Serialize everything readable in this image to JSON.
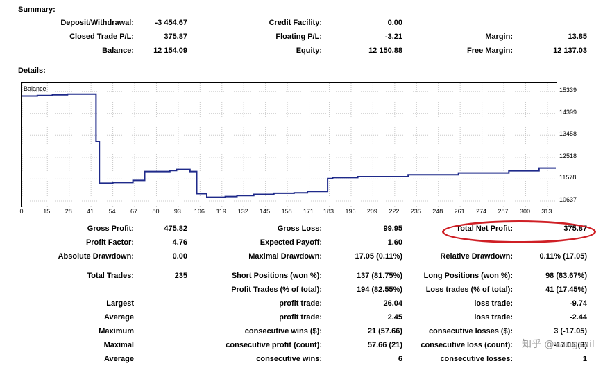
{
  "summary": {
    "title": "Summary:",
    "rows": [
      [
        {
          "label": "Deposit/Withdrawal:",
          "value": "-3 454.67"
        },
        {
          "label": "Credit Facility:",
          "value": "0.00"
        },
        {
          "label": "",
          "value": ""
        }
      ],
      [
        {
          "label": "Closed Trade P/L:",
          "value": "375.87"
        },
        {
          "label": "Floating P/L:",
          "value": "-3.21"
        },
        {
          "label": "Margin:",
          "value": "13.85"
        }
      ],
      [
        {
          "label": "Balance:",
          "value": "12 154.09"
        },
        {
          "label": "Equity:",
          "value": "12 150.88"
        },
        {
          "label": "Free Margin:",
          "value": "12 137.03"
        }
      ]
    ]
  },
  "details": {
    "title": "Details:",
    "rows": [
      [
        {
          "label": "Gross Profit:",
          "value": "475.82"
        },
        {
          "label": "Gross Loss:",
          "value": "99.95"
        },
        {
          "label": "Total Net Profit:",
          "value": "375.87"
        }
      ],
      [
        {
          "label": "Profit Factor:",
          "value": "4.76"
        },
        {
          "label": "Expected Payoff:",
          "value": "1.60"
        },
        {
          "label": "",
          "value": ""
        }
      ],
      [
        {
          "label": "Absolute Drawdown:",
          "value": "0.00"
        },
        {
          "label": "Maximal Drawdown:",
          "value": "17.05 (0.11%)"
        },
        {
          "label": "Relative Drawdown:",
          "value": "0.11% (17.05)"
        }
      ],
      [
        {
          "label": "Total Trades:",
          "value": "235"
        },
        {
          "label": "Short Positions (won %):",
          "value": "137 (81.75%)"
        },
        {
          "label": "Long Positions (won %):",
          "value": "98 (83.67%)"
        }
      ],
      [
        {
          "label": "",
          "value": ""
        },
        {
          "label": "Profit Trades (% of total):",
          "value": "194 (82.55%)"
        },
        {
          "label": "Loss trades (% of total):",
          "value": "41 (17.45%)"
        }
      ],
      [
        {
          "label": "Largest",
          "value": ""
        },
        {
          "label": "profit trade:",
          "value": "26.04"
        },
        {
          "label": "loss trade:",
          "value": "-9.74"
        }
      ],
      [
        {
          "label": "Average",
          "value": ""
        },
        {
          "label": "profit trade:",
          "value": "2.45"
        },
        {
          "label": "loss trade:",
          "value": "-2.44"
        }
      ],
      [
        {
          "label": "Maximum",
          "value": ""
        },
        {
          "label": "consecutive wins ($):",
          "value": "21 (57.66)"
        },
        {
          "label": "consecutive losses ($):",
          "value": "3 (-17.05)"
        }
      ],
      [
        {
          "label": "Maximal",
          "value": ""
        },
        {
          "label": "consecutive profit (count):",
          "value": "57.66 (21)"
        },
        {
          "label": "consecutive loss (count):",
          "value": "-17.05 (3)"
        }
      ],
      [
        {
          "label": "Average",
          "value": ""
        },
        {
          "label": "consecutive wins:",
          "value": "6"
        },
        {
          "label": "consecutive losses:",
          "value": "1"
        }
      ]
    ]
  },
  "chart_data": {
    "type": "line",
    "title": "Balance",
    "x_ticks": [
      0,
      15,
      28,
      41,
      54,
      67,
      80,
      93,
      106,
      119,
      132,
      145,
      158,
      171,
      183,
      196,
      209,
      222,
      235,
      248,
      261,
      274,
      287,
      300,
      313
    ],
    "y_ticks": [
      10637,
      11578,
      12518,
      13458,
      14399,
      15339
    ],
    "xlim": [
      0,
      318
    ],
    "ylim": [
      10400,
      15700
    ],
    "grid": true,
    "series": [
      {
        "color": "#1f2a8a",
        "x": [
          0,
          9,
          9,
          18,
          18,
          27,
          27,
          44,
          44,
          46,
          46,
          54,
          54,
          66,
          66,
          73,
          73,
          88,
          88,
          92,
          92,
          100,
          100,
          104,
          104,
          110,
          110,
          121,
          121,
          128,
          128,
          138,
          138,
          150,
          150,
          162,
          162,
          170,
          170,
          182,
          182,
          185,
          185,
          200,
          200,
          230,
          230,
          260,
          260,
          290,
          290,
          308,
          308,
          318
        ],
        "y": [
          15150,
          15150,
          15170,
          15170,
          15200,
          15200,
          15230,
          15230,
          13200,
          13200,
          11400,
          11400,
          11430,
          11430,
          11520,
          11520,
          11900,
          11900,
          11940,
          11940,
          11990,
          11990,
          11900,
          11900,
          10950,
          10950,
          10800,
          10800,
          10830,
          10830,
          10870,
          10870,
          10920,
          10920,
          10970,
          10970,
          10990,
          10990,
          11050,
          11050,
          11600,
          11600,
          11640,
          11640,
          11680,
          11680,
          11760,
          11760,
          11840,
          11840,
          11930,
          11930,
          12050,
          12050
        ]
      }
    ]
  },
  "highlight": {
    "color": "#cf1f25"
  },
  "watermark": {
    "text": "知乎 @vangsail"
  }
}
